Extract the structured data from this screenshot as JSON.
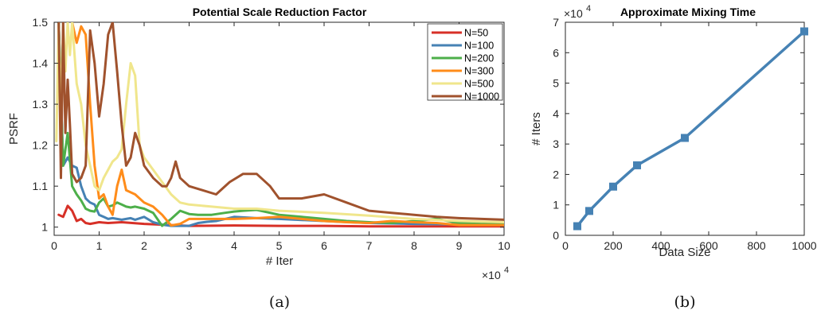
{
  "colors": {
    "N=50": "#d73027",
    "N=100": "#4682b4",
    "N=200": "#4daf4a",
    "N=300": "#ff8c1a",
    "N=500": "#f0e68c",
    "N=1000": "#a0522d",
    "mixing": "#4682b4"
  },
  "captions": {
    "a": "(a)",
    "b": "(b)"
  },
  "chart_data": [
    {
      "type": "line",
      "title": "Potential Scale Reduction Factor",
      "xlabel": "# Iter",
      "ylabel": "PSRF",
      "x_exponent": "×10^4",
      "xlim": [
        0,
        100000
      ],
      "ylim": [
        0.98,
        1.5
      ],
      "xticks": [
        0,
        10000,
        20000,
        30000,
        40000,
        50000,
        60000,
        70000,
        80000,
        90000,
        100000
      ],
      "xtick_labels": [
        "0",
        "1",
        "2",
        "3",
        "4",
        "5",
        "6",
        "7",
        "8",
        "9",
        "10"
      ],
      "yticks": [
        1,
        1.1,
        1.2,
        1.3,
        1.4,
        1.5
      ],
      "ytick_labels": [
        "1",
        "1.1",
        "1.2",
        "1.3",
        "1.4",
        "1.5"
      ],
      "legend": "top-right",
      "grid": false,
      "series": [
        {
          "name": "N=50",
          "x": [
            1000,
            2000,
            3000,
            4000,
            5000,
            6000,
            7000,
            8000,
            10000,
            12000,
            15000,
            20000,
            30000,
            40000,
            50000,
            60000,
            70000,
            80000,
            90000,
            100000
          ],
          "y": [
            1.03,
            1.025,
            1.052,
            1.04,
            1.015,
            1.02,
            1.01,
            1.008,
            1.012,
            1.01,
            1.012,
            1.008,
            1.003,
            1.004,
            1.003,
            1.003,
            1.002,
            1.002,
            1.002,
            1.002
          ]
        },
        {
          "name": "N=100",
          "x": [
            1000,
            2000,
            3000,
            4000,
            5000,
            6000,
            7000,
            8000,
            9000,
            10000,
            11000,
            12000,
            13000,
            14000,
            15000,
            16000,
            17000,
            18000,
            20000,
            22000,
            24000,
            26000,
            30000,
            32000,
            34000,
            36000,
            38000,
            40000,
            45000,
            50000,
            60000,
            70000,
            80000,
            90000,
            100000
          ],
          "y": [
            1.5,
            1.15,
            1.17,
            1.15,
            1.145,
            1.1,
            1.07,
            1.06,
            1.055,
            1.03,
            1.025,
            1.02,
            1.022,
            1.02,
            1.018,
            1.02,
            1.022,
            1.018,
            1.025,
            1.012,
            1.006,
            1.003,
            1.003,
            1.01,
            1.013,
            1.015,
            1.02,
            1.025,
            1.022,
            1.02,
            1.015,
            1.01,
            1.008,
            1.007,
            1.005
          ]
        },
        {
          "name": "N=200",
          "x": [
            1000,
            2000,
            3000,
            4000,
            5000,
            6000,
            7000,
            8000,
            9000,
            10000,
            11000,
            12000,
            13000,
            14000,
            15000,
            16000,
            17000,
            18000,
            20000,
            22000,
            24000,
            26000,
            28000,
            30000,
            32000,
            35000,
            38000,
            40000,
            42000,
            45000,
            50000,
            55000,
            60000,
            65000,
            70000,
            75000,
            80000,
            85000,
            90000,
            95000,
            100000
          ],
          "y": [
            1.5,
            1.15,
            1.23,
            1.1,
            1.08,
            1.065,
            1.045,
            1.04,
            1.038,
            1.06,
            1.07,
            1.05,
            1.053,
            1.06,
            1.055,
            1.05,
            1.048,
            1.05,
            1.045,
            1.035,
            1.003,
            1.02,
            1.04,
            1.032,
            1.03,
            1.03,
            1.035,
            1.038,
            1.04,
            1.042,
            1.03,
            1.025,
            1.02,
            1.015,
            1.012,
            1.01,
            1.015,
            1.02,
            1.01,
            1.008,
            1.01
          ]
        },
        {
          "name": "N=300",
          "x": [
            4000,
            5000,
            6000,
            7000,
            8000,
            9000,
            10000,
            11000,
            12000,
            13000,
            14000,
            15000,
            16000,
            18000,
            20000,
            22000,
            24000,
            26000,
            28000,
            30000,
            35000,
            40000,
            45000,
            50000,
            55000,
            60000,
            65000,
            70000,
            75000,
            80000,
            85000,
            90000,
            100000
          ],
          "y": [
            1.5,
            1.45,
            1.49,
            1.47,
            1.3,
            1.15,
            1.07,
            1.08,
            1.05,
            1.03,
            1.1,
            1.14,
            1.09,
            1.08,
            1.06,
            1.05,
            1.03,
            1.004,
            1.008,
            1.02,
            1.02,
            1.02,
            1.022,
            1.025,
            1.02,
            1.015,
            1.012,
            1.01,
            1.015,
            1.012,
            1.01,
            1.005,
            1.005
          ]
        },
        {
          "name": "N=500",
          "x": [
            500,
            1000,
            1500,
            2000,
            2500,
            3000,
            3500,
            4000,
            5000,
            6000,
            7000,
            8000,
            9000,
            10000,
            11000,
            12000,
            13000,
            14000,
            15000,
            16000,
            17000,
            18000,
            19000,
            20000,
            22000,
            24000,
            26000,
            28000,
            30000,
            35000,
            40000,
            45000,
            50000,
            60000,
            70000,
            80000,
            90000,
            100000
          ],
          "y": [
            1.21,
            1.5,
            1.27,
            1.5,
            1.38,
            1.5,
            1.42,
            1.5,
            1.35,
            1.3,
            1.2,
            1.15,
            1.1,
            1.09,
            1.12,
            1.14,
            1.16,
            1.17,
            1.19,
            1.3,
            1.4,
            1.37,
            1.2,
            1.17,
            1.14,
            1.11,
            1.08,
            1.06,
            1.055,
            1.05,
            1.045,
            1.045,
            1.04,
            1.035,
            1.028,
            1.02,
            1.015,
            1.012
          ]
        },
        {
          "name": "N=1000",
          "x": [
            1000,
            1500,
            2000,
            2500,
            3000,
            3500,
            4000,
            5000,
            6000,
            7000,
            8000,
            9000,
            10000,
            11000,
            12000,
            13000,
            14000,
            15000,
            16000,
            17000,
            18000,
            19000,
            20000,
            22000,
            24000,
            25000,
            26000,
            27000,
            28000,
            30000,
            33000,
            36000,
            39000,
            42000,
            45000,
            48000,
            50000,
            55000,
            60000,
            65000,
            70000,
            75000,
            80000,
            85000,
            90000,
            95000,
            100000
          ],
          "y": [
            1.5,
            1.12,
            1.5,
            1.23,
            1.36,
            1.25,
            1.13,
            1.11,
            1.12,
            1.15,
            1.48,
            1.4,
            1.27,
            1.35,
            1.47,
            1.5,
            1.38,
            1.25,
            1.15,
            1.17,
            1.23,
            1.2,
            1.15,
            1.12,
            1.1,
            1.1,
            1.12,
            1.16,
            1.12,
            1.1,
            1.09,
            1.08,
            1.11,
            1.13,
            1.13,
            1.1,
            1.07,
            1.07,
            1.08,
            1.06,
            1.04,
            1.035,
            1.03,
            1.025,
            1.022,
            1.02,
            1.018
          ]
        }
      ]
    },
    {
      "type": "line",
      "title": "Approximate Mixing Time",
      "xlabel": "Data Size",
      "ylabel": "# Iters",
      "y_exponent": "×10^4",
      "xlim": [
        0,
        1000
      ],
      "ylim": [
        0,
        70000
      ],
      "xticks": [
        0,
        200,
        400,
        600,
        800,
        1000
      ],
      "xtick_labels": [
        "0",
        "200",
        "400",
        "600",
        "800",
        "1000"
      ],
      "yticks": [
        0,
        10000,
        20000,
        30000,
        40000,
        50000,
        60000,
        70000
      ],
      "ytick_labels": [
        "0",
        "1",
        "2",
        "3",
        "4",
        "5",
        "6",
        "7"
      ],
      "grid": false,
      "series": [
        {
          "x": [
            50,
            100,
            200,
            300,
            500,
            1000
          ],
          "y": [
            3000,
            8000,
            16000,
            23000,
            32000,
            67000
          ]
        }
      ]
    }
  ]
}
